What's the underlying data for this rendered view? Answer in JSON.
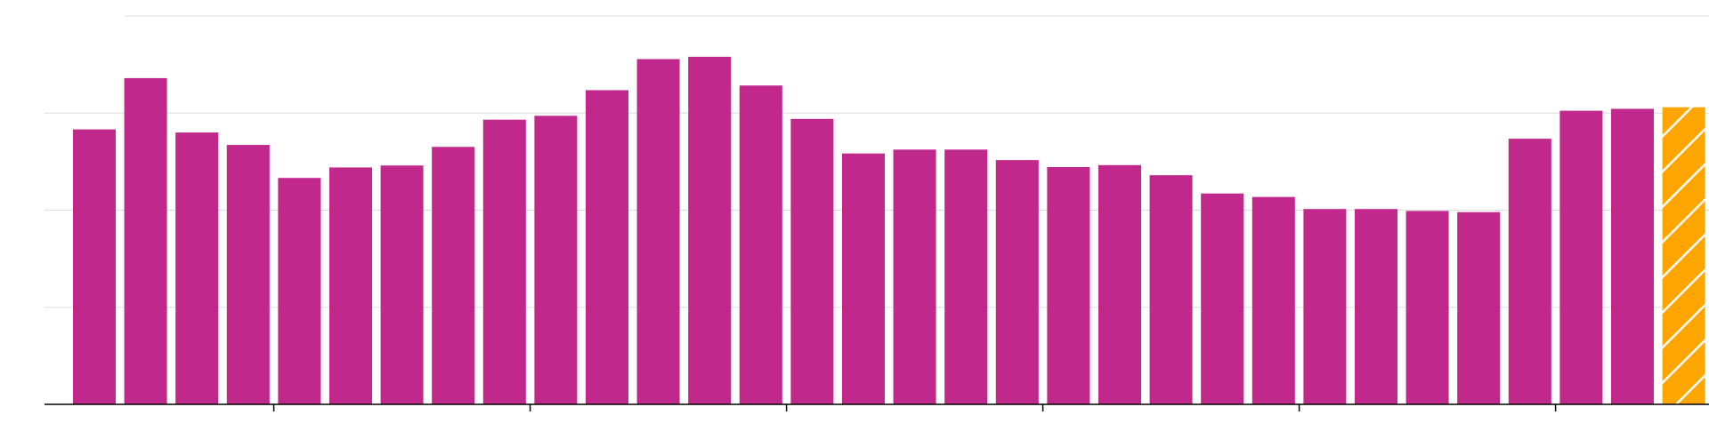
{
  "chart_data": {
    "type": "bar",
    "title": "",
    "xlabel": "",
    "ylabel": "",
    "ylim": [
      0,
      100
    ],
    "y_gridlines": [
      0,
      25,
      50,
      75,
      100
    ],
    "grid": true,
    "legend": "none",
    "values": [
      70.8,
      84.0,
      70.0,
      66.8,
      58.3,
      61.0,
      61.5,
      66.3,
      73.3,
      74.3,
      80.9,
      88.9,
      89.5,
      82.1,
      73.5,
      64.6,
      65.6,
      65.6,
      62.9,
      61.1,
      61.6,
      59.0,
      54.3,
      53.4,
      50.3,
      50.3,
      49.8,
      49.5,
      68.4,
      75.6,
      76.1,
      76.5
    ],
    "bar_styles": [
      "actual",
      "actual",
      "actual",
      "actual",
      "actual",
      "actual",
      "actual",
      "actual",
      "actual",
      "actual",
      "actual",
      "actual",
      "actual",
      "actual",
      "actual",
      "actual",
      "actual",
      "actual",
      "actual",
      "actual",
      "actual",
      "actual",
      "actual",
      "actual",
      "actual",
      "actual",
      "actual",
      "actual",
      "actual",
      "actual",
      "actual",
      "projected"
    ],
    "x_tick_after_bar_index": [
      3,
      8,
      13,
      18,
      23,
      28
    ],
    "colors": {
      "actual": "#c0288c",
      "projected": "#ffa500",
      "hatch": "#ffffff",
      "grid": "#dddddd",
      "axis": "#000000"
    }
  }
}
